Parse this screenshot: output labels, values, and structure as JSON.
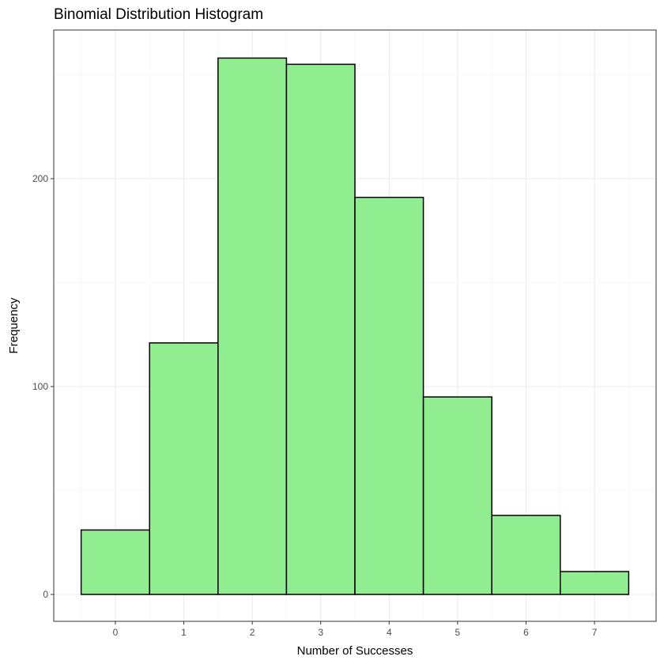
{
  "chart_data": {
    "type": "bar",
    "title": "Binomial Distribution Histogram",
    "xlabel": "Number of Successes",
    "ylabel": "Frequency",
    "categories": [
      0,
      1,
      2,
      3,
      4,
      5,
      6,
      7
    ],
    "values": [
      31,
      121,
      258,
      255,
      191,
      95,
      38,
      11
    ],
    "x_ticks": [
      0,
      1,
      2,
      3,
      4,
      5,
      6,
      7
    ],
    "y_ticks": [
      0,
      100,
      200
    ],
    "xlim": [
      -0.5,
      7.5
    ],
    "ylim": [
      0,
      258
    ],
    "grid": true,
    "colors": {
      "bar_fill": "#90EE90",
      "bar_stroke": "#000000",
      "grid": "#ebebeb",
      "panel_border": "#333333"
    }
  }
}
